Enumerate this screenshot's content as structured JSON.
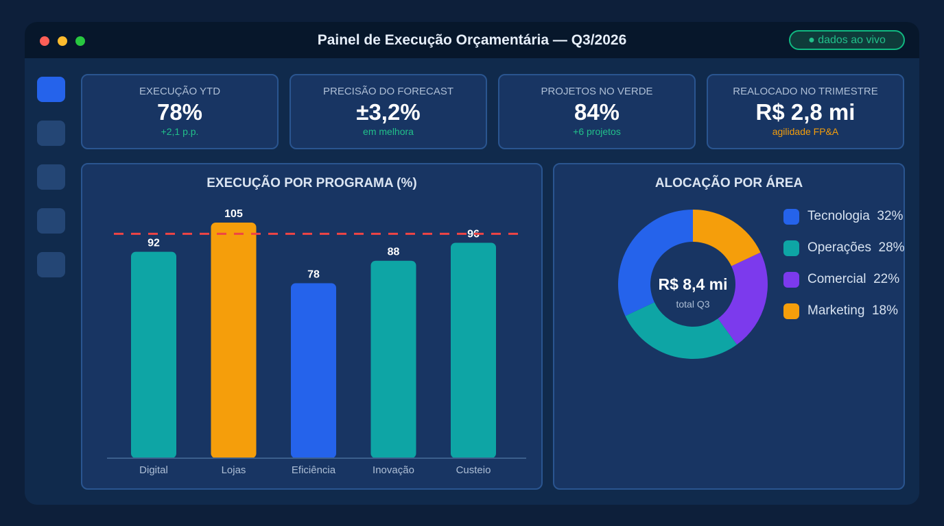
{
  "window": {
    "title": "Painel de Execução Orçamentária — Q3/2026",
    "live_badge": "● dados ao vivo"
  },
  "sidebar": {
    "items": [
      {
        "icon": "dashboard-icon",
        "active": true
      },
      {
        "icon": "menu-item-icon",
        "active": false
      },
      {
        "icon": "menu-item-icon",
        "active": false
      },
      {
        "icon": "menu-item-icon",
        "active": false
      },
      {
        "icon": "menu-item-icon",
        "active": false
      }
    ]
  },
  "kpis": [
    {
      "label": "EXECUÇÃO YTD",
      "value": "78%",
      "sub": "+2,1 p.p.",
      "sub_color": "#22c08a"
    },
    {
      "label": "PRECISÃO DO FORECAST",
      "value": "±3,2%",
      "sub": "em melhora",
      "sub_color": "#22c08a"
    },
    {
      "label": "PROJETOS NO VERDE",
      "value": "84%",
      "sub": "+6 projetos",
      "sub_color": "#22c08a"
    },
    {
      "label": "REALOCADO NO TRIMESTRE",
      "value": "R$ 2,8 mi",
      "sub": "agilidade FP&A",
      "sub_color": "#f59e0b"
    }
  ],
  "bar_panel": {
    "title": "EXECUÇÃO POR PROGRAMA (%)"
  },
  "donut_panel": {
    "title": "ALOCAÇÃO POR ÁREA",
    "center_value": "R$ 8,4 mi",
    "center_label": "total Q3"
  },
  "colors": {
    "teal": "#0ea5a5",
    "orange": "#f59e0b",
    "blue": "#2563eb",
    "purple": "#7c3aed",
    "target_line": "#ef4444"
  },
  "chart_data": [
    {
      "type": "bar",
      "title": "EXECUÇÃO POR PROGRAMA (%)",
      "categories": [
        "Digital",
        "Lojas",
        "Eficiência",
        "Inovação",
        "Custeio"
      ],
      "values": [
        92,
        105,
        78,
        88,
        96
      ],
      "colors": [
        "#0ea5a5",
        "#f59e0b",
        "#2563eb",
        "#0ea5a5",
        "#0ea5a5"
      ],
      "reference_line": 100,
      "ylim": [
        0,
        105
      ],
      "xlabel": "",
      "ylabel": "",
      "grid": false
    },
    {
      "type": "pie",
      "style": "donut",
      "title": "ALOCAÇÃO POR ÁREA",
      "labels": [
        "Tecnologia",
        "Operações",
        "Comercial",
        "Marketing"
      ],
      "values": [
        32,
        28,
        22,
        18
      ],
      "value_labels": [
        "32%",
        "28%",
        "22%",
        "18%"
      ],
      "colors": [
        "#2563eb",
        "#0ea5a5",
        "#7c3aed",
        "#f59e0b"
      ],
      "legend": "right"
    }
  ]
}
